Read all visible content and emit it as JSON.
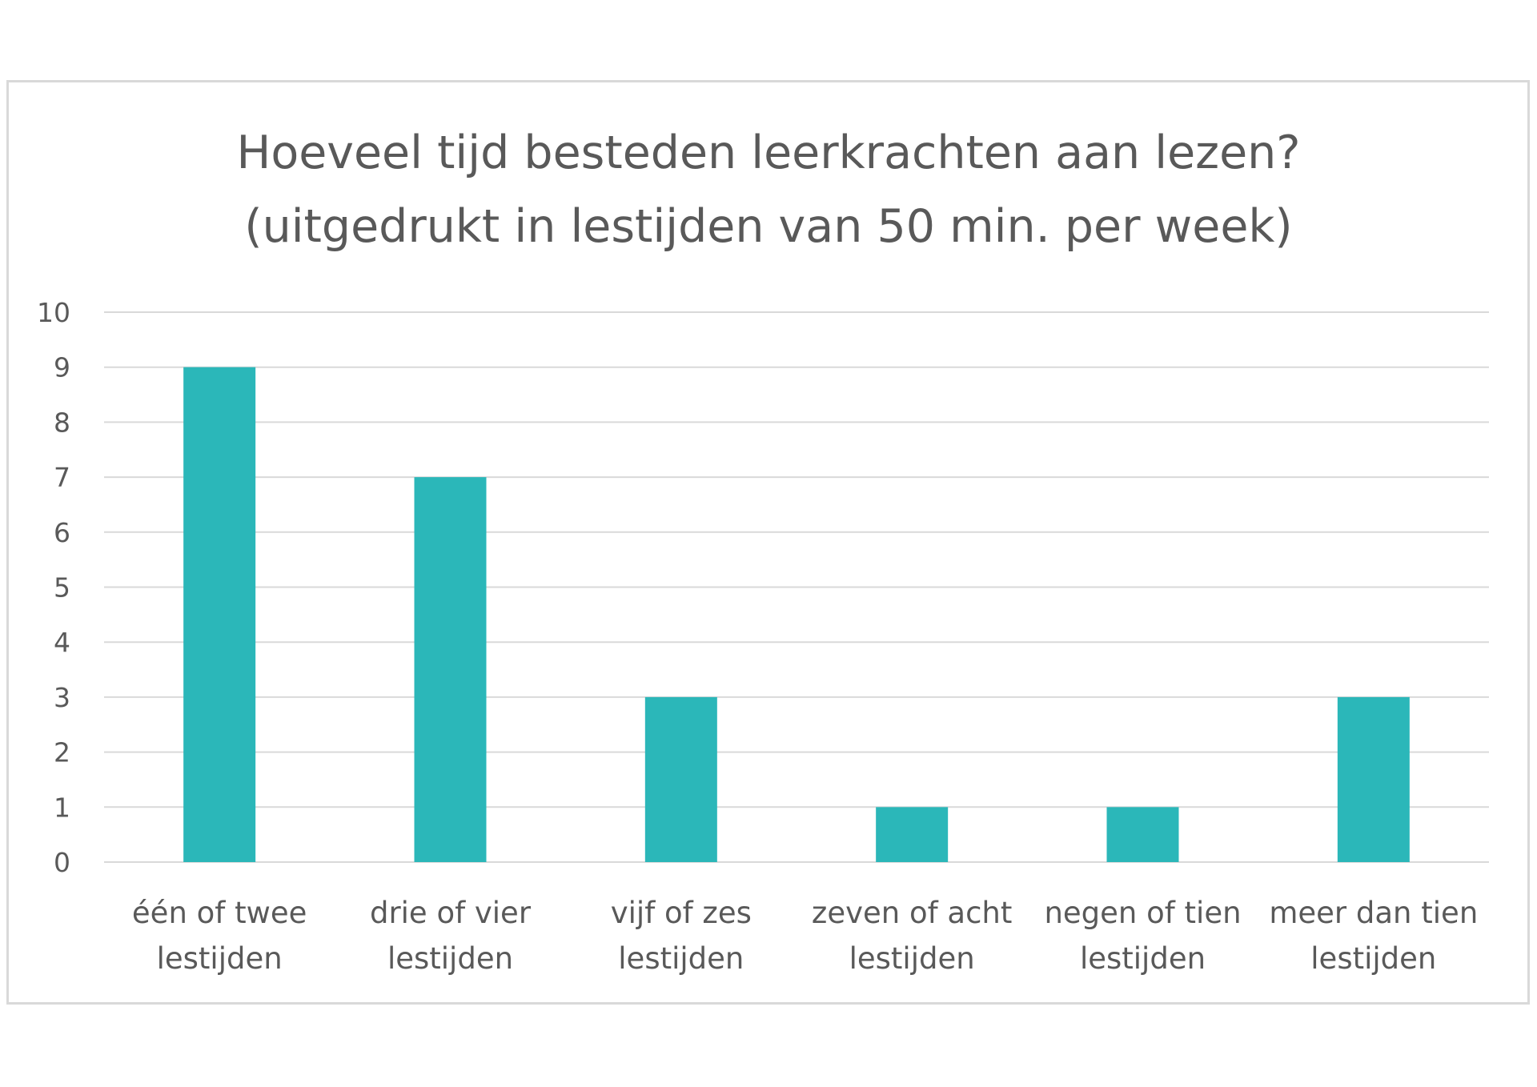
{
  "chart_data": {
    "type": "bar",
    "title": "Hoeveel  tijd besteden leerkrachten aan lezen?",
    "subtitle": "(uitgedrukt in lestijden van 50 min. per week)",
    "categories": [
      [
        "één of twee",
        "lestijden"
      ],
      [
        "drie of vier",
        "lestijden"
      ],
      [
        "vijf of zes",
        "lestijden"
      ],
      [
        "zeven of acht",
        "lestijden"
      ],
      [
        "negen of tien",
        "lestijden"
      ],
      [
        "meer dan tien",
        "lestijden"
      ]
    ],
    "values": [
      9,
      7,
      3,
      1,
      1,
      3
    ],
    "ylim": [
      0,
      10
    ],
    "yticks": [
      "0",
      "1",
      "2",
      "3",
      "4",
      "5",
      "6",
      "7",
      "8",
      "9",
      "10"
    ],
    "xlabel": "",
    "ylabel": "",
    "grid": true,
    "legend": "none",
    "bar_color": "#2bb7b9",
    "grid_color": "#d9d9d9",
    "text_color": "#595959"
  }
}
